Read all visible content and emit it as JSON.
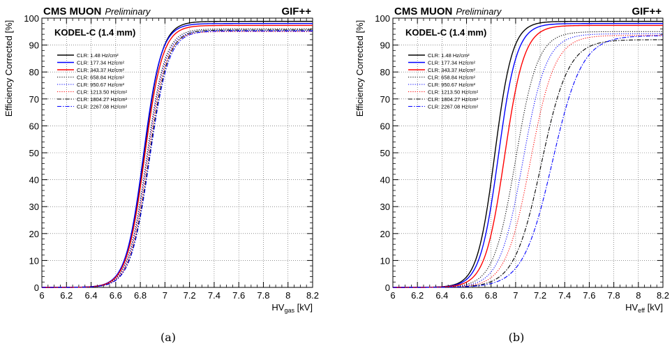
{
  "captions": [
    "(a)",
    "(b)"
  ],
  "colors": {
    "axis": "#000000",
    "grid": "#000000",
    "black": "#000000",
    "blue": "#0000ff",
    "red": "#ff0000"
  },
  "chart_data": [
    {
      "type": "line",
      "header_left": "CMS MUON",
      "header_left_italic": "Preliminary",
      "header_right": "GIF++",
      "title": "KODEL-C (1.4 mm)",
      "xlabel_main": "HV",
      "xlabel_sub": "gas",
      "xlabel_unit": " [kV]",
      "ylabel": "Efficiency Corrected [%]",
      "xlim": [
        6,
        8.2
      ],
      "ylim": [
        0,
        100
      ],
      "xticks": [
        6,
        6.2,
        6.4,
        6.6,
        6.8,
        7,
        7.2,
        7.4,
        7.6,
        7.8,
        8,
        8.2
      ],
      "xtick_labels": [
        "6",
        "6.2",
        "6.4",
        "6.6",
        "6.8",
        "7",
        "7.2",
        "7.4",
        "7.6",
        "7.8",
        "8",
        "8.2"
      ],
      "yticks": [
        0,
        10,
        20,
        30,
        40,
        50,
        60,
        70,
        80,
        90,
        100
      ],
      "ytick_labels": [
        "0",
        "10",
        "20",
        "30",
        "40",
        "50",
        "60",
        "70",
        "80",
        "90",
        "100"
      ],
      "grid": true,
      "legend_position": "top-left",
      "series": [
        {
          "name": "CLR: 1.48 Hz/cm²",
          "color": "black",
          "style": "solid",
          "plateau": 98.8,
          "hv50": 6.83,
          "width": 0.072
        },
        {
          "name": "CLR: 177.34 Hz/cm²",
          "color": "blue",
          "style": "solid",
          "plateau": 98.0,
          "hv50": 6.825,
          "width": 0.072
        },
        {
          "name": "CLR: 343.37 Hz/cm²",
          "color": "red",
          "style": "solid",
          "plateau": 97.3,
          "hv50": 6.835,
          "width": 0.073
        },
        {
          "name": "CLR: 658.84 Hz/cm²",
          "color": "black",
          "style": "dotted",
          "plateau": 96.0,
          "hv50": 6.85,
          "width": 0.075
        },
        {
          "name": "CLR: 950.67 Hz/cm²",
          "color": "blue",
          "style": "dotted",
          "plateau": 95.5,
          "hv50": 6.855,
          "width": 0.075
        },
        {
          "name": "CLR: 1213.50 Hz/cm²",
          "color": "red",
          "style": "dotted",
          "plateau": 95.0,
          "hv50": 6.86,
          "width": 0.075
        },
        {
          "name": "CLR: 1804.27 Hz/cm²",
          "color": "black",
          "style": "dashdot",
          "plateau": 95.6,
          "hv50": 6.87,
          "width": 0.076
        },
        {
          "name": "CLR: 2267.08 Hz/cm²",
          "color": "blue",
          "style": "dashdot",
          "plateau": 95.2,
          "hv50": 6.875,
          "width": 0.077
        }
      ]
    },
    {
      "type": "line",
      "header_left": "CMS MUON",
      "header_left_italic": "Preliminary",
      "header_right": "GIF++",
      "title": "KODEL-C (1.4 mm)",
      "xlabel_main": "HV",
      "xlabel_sub": "eff",
      "xlabel_unit": " [kV]",
      "ylabel": "Efficiency Corrected [%]",
      "xlim": [
        6,
        8.2
      ],
      "ylim": [
        0,
        100
      ],
      "xticks": [
        6,
        6.2,
        6.4,
        6.6,
        6.8,
        7,
        7.2,
        7.4,
        7.6,
        7.8,
        8,
        8.2
      ],
      "xtick_labels": [
        "6",
        "6.2",
        "6.4",
        "6.6",
        "6.8",
        "7",
        "7.2",
        "7.4",
        "7.6",
        "7.8",
        "8",
        "8.2"
      ],
      "yticks": [
        0,
        10,
        20,
        30,
        40,
        50,
        60,
        70,
        80,
        90,
        100
      ],
      "ytick_labels": [
        "0",
        "10",
        "20",
        "30",
        "40",
        "50",
        "60",
        "70",
        "80",
        "90",
        "100"
      ],
      "grid": true,
      "legend_position": "top-left",
      "series": [
        {
          "name": "CLR: 1.48 Hz/cm²",
          "color": "black",
          "style": "solid",
          "plateau": 98.8,
          "hv50": 6.83,
          "width": 0.072
        },
        {
          "name": "CLR: 177.34 Hz/cm²",
          "color": "blue",
          "style": "solid",
          "plateau": 98.0,
          "hv50": 6.86,
          "width": 0.075
        },
        {
          "name": "CLR: 343.37 Hz/cm²",
          "color": "red",
          "style": "solid",
          "plateau": 97.3,
          "hv50": 6.91,
          "width": 0.08
        },
        {
          "name": "CLR: 658.84 Hz/cm²",
          "color": "black",
          "style": "dotted",
          "plateau": 95.0,
          "hv50": 7.0,
          "width": 0.09
        },
        {
          "name": "CLR: 950.67 Hz/cm²",
          "color": "blue",
          "style": "dotted",
          "plateau": 94.2,
          "hv50": 7.06,
          "width": 0.095
        },
        {
          "name": "CLR: 1213.50 Hz/cm²",
          "color": "red",
          "style": "dotted",
          "plateau": 93.6,
          "hv50": 7.12,
          "width": 0.1
        },
        {
          "name": "CLR: 1804.27 Hz/cm²",
          "color": "black",
          "style": "dashdot",
          "plateau": 92.0,
          "hv50": 7.21,
          "width": 0.11
        },
        {
          "name": "CLR: 2267.08 Hz/cm²",
          "color": "blue",
          "style": "dashdot",
          "plateau": 93.5,
          "hv50": 7.3,
          "width": 0.12
        }
      ]
    }
  ]
}
